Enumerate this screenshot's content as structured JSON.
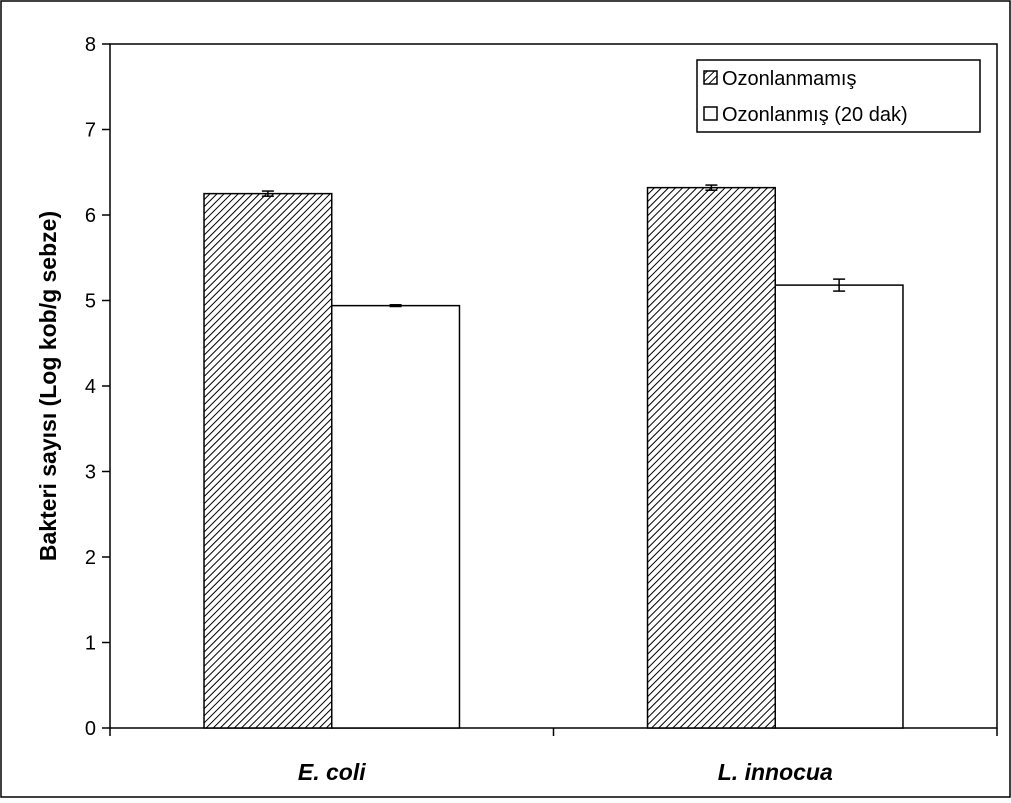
{
  "chart_data": {
    "type": "bar",
    "title": "",
    "xlabel": "",
    "ylabel": "Bakteri sayısı (Log kob/g sebze)",
    "ylim": [
      0,
      8
    ],
    "yticks": [
      "0",
      "1",
      "2",
      "3",
      "4",
      "5",
      "6",
      "7",
      "8"
    ],
    "categories": [
      "E. coli",
      "L. innocua"
    ],
    "series": [
      {
        "name": "Ozonlanmamış",
        "values": [
          6.25,
          6.32
        ],
        "errors": [
          0.03,
          0.03
        ],
        "pattern": "hatched",
        "color": "#000000"
      },
      {
        "name": "Ozonlanmış (20 dak)",
        "values": [
          4.94,
          5.18
        ],
        "errors": [
          0.01,
          0.07
        ],
        "pattern": "solid",
        "color": "#ffffff"
      }
    ],
    "legend_position": "top-right",
    "grid": false
  }
}
